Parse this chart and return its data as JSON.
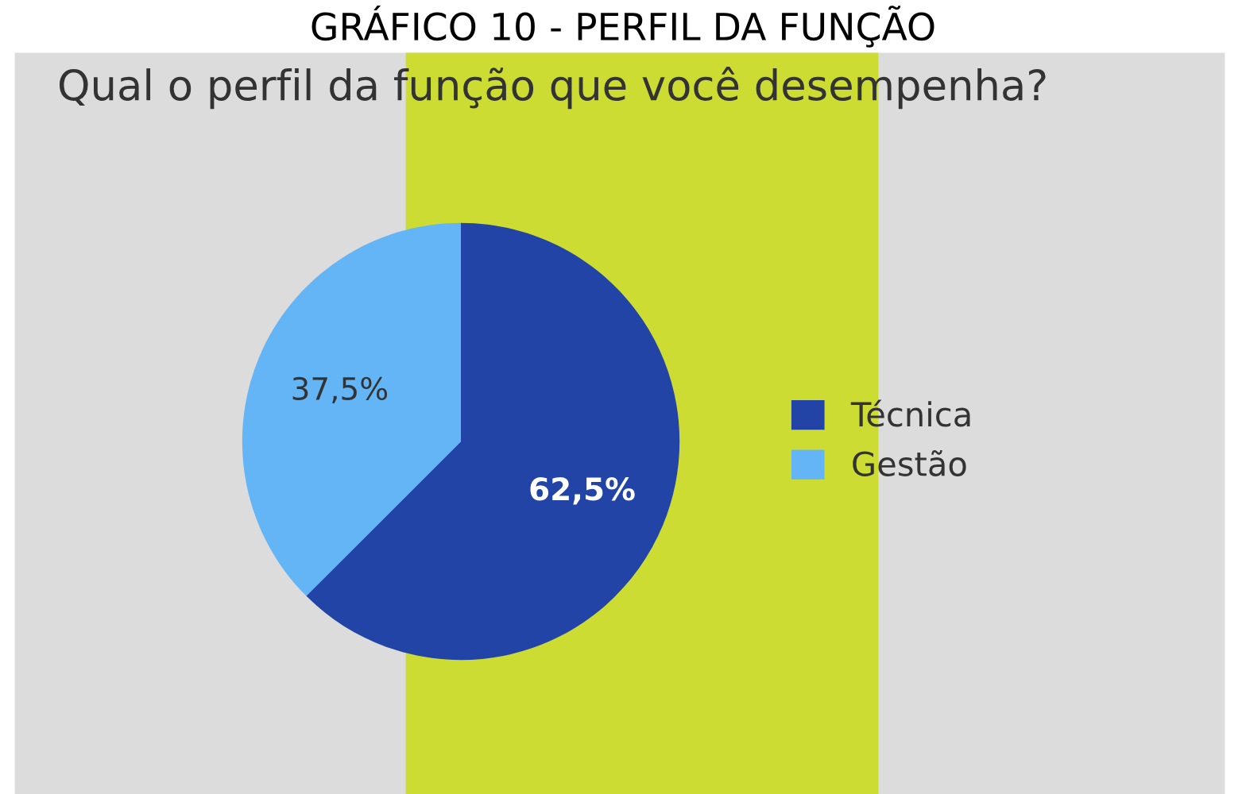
{
  "chart_data": {
    "type": "pie",
    "title": "GRÁFICO 10 - PERFIL DA FUNÇÃO",
    "subtitle": "Qual o perfil da função que você desempenha?",
    "categories": [
      "Técnica",
      "Gestão"
    ],
    "values": [
      62.5,
      37.5
    ],
    "colors": [
      "#2144a6",
      "#64b5f6"
    ],
    "value_labels": [
      "62,5%",
      "37,5%"
    ],
    "legend": "right"
  }
}
